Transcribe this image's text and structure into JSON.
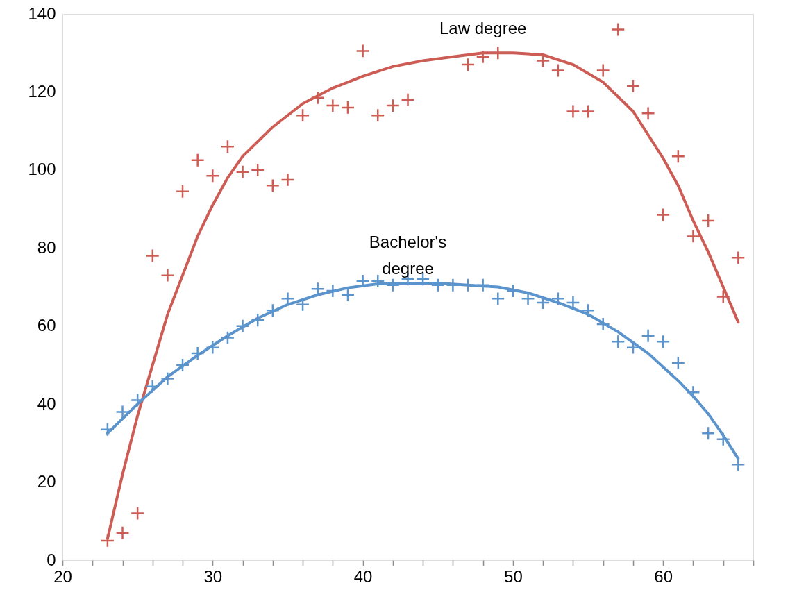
{
  "chart_data": {
    "type": "scatter",
    "grid": false,
    "xlim": [
      20,
      66
    ],
    "ylim": [
      0,
      140
    ],
    "xticks": [
      20,
      {
        "value": 22,
        "label": null
      },
      {
        "value": 24,
        "label": null
      },
      {
        "value": 26,
        "label": null
      },
      {
        "value": 28,
        "label": null
      },
      30,
      {
        "value": 32,
        "label": null
      },
      {
        "value": 34,
        "label": null
      },
      {
        "value": 36,
        "label": null
      },
      {
        "value": 38,
        "label": null
      },
      40,
      {
        "value": 42,
        "label": null
      },
      {
        "value": 44,
        "label": null
      },
      {
        "value": 46,
        "label": null
      },
      {
        "value": 48,
        "label": null
      },
      50,
      {
        "value": 52,
        "label": null
      },
      {
        "value": 54,
        "label": null
      },
      {
        "value": 56,
        "label": null
      },
      {
        "value": 58,
        "label": null
      },
      60,
      {
        "value": 62,
        "label": null
      },
      {
        "value": 64,
        "label": null
      },
      {
        "value": 66,
        "label": null
      }
    ],
    "yticks": [
      0,
      20,
      40,
      60,
      80,
      100,
      120,
      140
    ],
    "series": [
      {
        "marker": "cross",
        "color": "#cd5c55",
        "x": [
          23,
          24,
          25,
          26,
          27,
          28,
          29,
          30,
          31,
          32,
          33,
          34,
          35,
          36,
          37,
          38,
          39,
          40,
          41,
          42,
          43,
          47,
          48,
          49,
          52,
          53,
          54,
          55,
          56,
          57,
          58,
          59,
          60,
          61,
          62,
          63,
          64,
          65
        ],
        "values": [
          5,
          7,
          12,
          78,
          73,
          94.5,
          102.5,
          98.5,
          106,
          99.5,
          100,
          96,
          97.5,
          114,
          118.5,
          116.5,
          116,
          130.5,
          114,
          116.5,
          118,
          127,
          129,
          130,
          128,
          125.5,
          115,
          115,
          125.5,
          136,
          121.5,
          114.5,
          88.5,
          103.5,
          83,
          87,
          67.5,
          77.5
        ]
      },
      {
        "type": "line",
        "marker": "none",
        "line_style": "solid",
        "name": "Law degree",
        "color": "#cd5c55",
        "x": [
          23,
          24,
          25,
          26,
          27,
          28,
          29,
          30,
          31,
          32,
          34,
          36,
          38,
          40,
          42,
          44,
          46,
          48,
          50,
          52,
          54,
          56,
          58,
          60,
          61,
          62,
          63,
          64,
          65
        ],
        "values": [
          5.5,
          22,
          37,
          50,
          63,
          73,
          83,
          91,
          98,
          103.5,
          111,
          117,
          121,
          124,
          126.5,
          128,
          129,
          130,
          130,
          129.5,
          127,
          122.5,
          115,
          103,
          96,
          87,
          79,
          70,
          61
        ]
      },
      {
        "marker": "cross",
        "color": "#5b94cc",
        "x": [
          23,
          24,
          25,
          26,
          27,
          28,
          29,
          30,
          31,
          32,
          33,
          34,
          35,
          36,
          37,
          38,
          39,
          40,
          41,
          42,
          43,
          44,
          45,
          46,
          47,
          48,
          49,
          50,
          51,
          52,
          53,
          54,
          55,
          56,
          57,
          58,
          59,
          60,
          61,
          62,
          63,
          64,
          65
        ],
        "values": [
          33.5,
          38,
          41,
          44.5,
          46.5,
          50,
          53,
          54.5,
          57,
          60,
          61.5,
          64,
          67,
          65.5,
          69.5,
          69,
          68,
          71.5,
          71.5,
          70.5,
          72,
          72,
          70.5,
          70.5,
          70.5,
          70.5,
          67,
          69,
          67,
          66,
          67,
          66,
          64,
          60.5,
          56,
          54.5,
          57.5,
          56,
          50.5,
          43,
          32.5,
          31,
          24.5
        ]
      },
      {
        "type": "line",
        "marker": "none",
        "line_style": "solid",
        "name": "Bachelor's\ndegree",
        "color": "#5b94cc",
        "x": [
          23,
          25,
          27,
          29,
          31,
          33,
          35,
          37,
          39,
          41,
          43,
          45,
          47,
          49,
          51,
          53,
          55,
          57,
          59,
          61,
          62,
          63,
          64,
          65
        ],
        "values": [
          32.5,
          40,
          47,
          52.5,
          57.5,
          62,
          65.5,
          68,
          69.8,
          70.8,
          71,
          71,
          70.5,
          70,
          68.5,
          66,
          63,
          58.5,
          53,
          46,
          42,
          37.5,
          32,
          26
        ]
      }
    ]
  }
}
